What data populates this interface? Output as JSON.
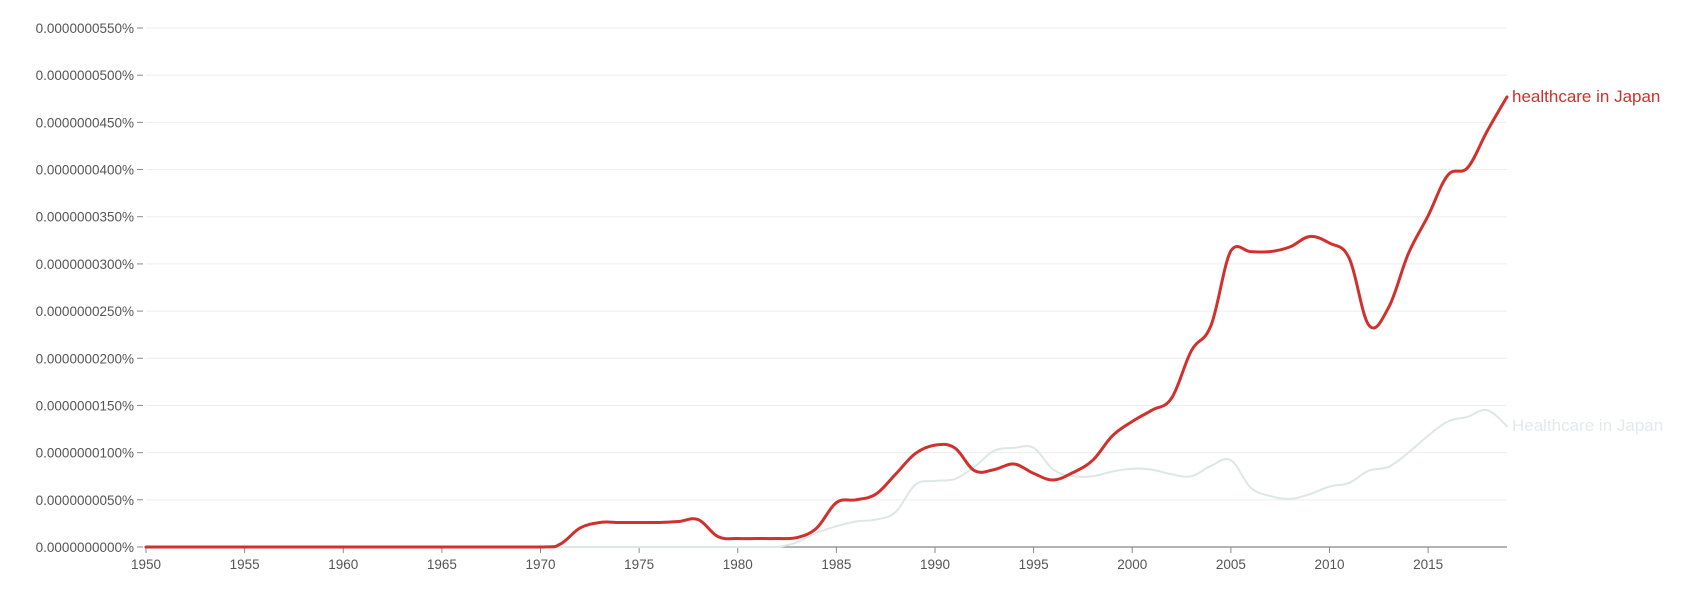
{
  "chart_data": {
    "type": "line",
    "title": "",
    "xlabel": "",
    "ylabel": "",
    "xlim": [
      1950,
      2019
    ],
    "ylim": [
      0,
      5.5e-08
    ],
    "grid": true,
    "x_ticks": [
      1950,
      1955,
      1960,
      1965,
      1970,
      1975,
      1980,
      1985,
      1990,
      1995,
      2000,
      2005,
      2010,
      2015
    ],
    "y_ticks": [
      0,
      5e-09,
      1e-08,
      1.5e-08,
      2e-08,
      2.5e-08,
      3e-08,
      3.5e-08,
      4e-08,
      4.5e-08,
      5e-08,
      5.5e-08
    ],
    "y_tick_labels": [
      "0.0000000000%",
      "0.0000000050%",
      "0.0000000100%",
      "0.0000000150%",
      "0.0000000200%",
      "0.0000000250%",
      "0.0000000300%",
      "0.0000000350%",
      "0.0000000400%",
      "0.0000000450%",
      "0.0000000500%",
      "0.0000000550%"
    ],
    "legend": "series labels at right end of lines",
    "series": [
      {
        "name": "healthcare in Japan",
        "color": "#d0312d",
        "x": [
          1950,
          1955,
          1960,
          1965,
          1970,
          1971,
          1972,
          1973,
          1974,
          1975,
          1976,
          1977,
          1978,
          1979,
          1980,
          1981,
          1982,
          1983,
          1984,
          1985,
          1986,
          1987,
          1988,
          1989,
          1990,
          1991,
          1992,
          1993,
          1994,
          1995,
          1996,
          1997,
          1998,
          1999,
          2000,
          2001,
          2002,
          2003,
          2004,
          2005,
          2006,
          2007,
          2008,
          2009,
          2010,
          2011,
          2012,
          2013,
          2014,
          2015,
          2016,
          2017,
          2018,
          2019
        ],
        "values": [
          0,
          0,
          0,
          0,
          0,
          3e-10,
          2e-09,
          2.6e-09,
          2.6e-09,
          2.6e-09,
          2.6e-09,
          2.7e-09,
          2.9e-09,
          1.1e-09,
          9e-10,
          9e-10,
          9e-10,
          1e-09,
          2e-09,
          4.7e-09,
          5e-09,
          5.6e-09,
          7.7e-09,
          9.9e-09,
          1.08e-08,
          1.05e-08,
          8.1e-09,
          8.2e-09,
          8.8e-09,
          7.8e-09,
          7.1e-09,
          7.9e-09,
          9.2e-09,
          1.18e-08,
          1.33e-08,
          1.45e-08,
          1.58e-08,
          2.08e-08,
          2.35e-08,
          3.14e-08,
          3.13e-08,
          3.13e-08,
          3.18e-08,
          3.29e-08,
          3.22e-08,
          3.06e-08,
          2.35e-08,
          2.54e-08,
          3.11e-08,
          3.51e-08,
          3.94e-08,
          4.02e-08,
          4.41e-08,
          4.77e-08
        ]
      },
      {
        "name": "Healthcare in Japan",
        "color": "#dde7e6",
        "x": [
          1950,
          1955,
          1960,
          1965,
          1970,
          1975,
          1980,
          1981,
          1982,
          1983,
          1984,
          1985,
          1986,
          1987,
          1988,
          1989,
          1990,
          1991,
          1992,
          1993,
          1994,
          1995,
          1996,
          1997,
          1998,
          1999,
          2000,
          2001,
          2002,
          2003,
          2004,
          2005,
          2006,
          2007,
          2008,
          2009,
          2010,
          2011,
          2012,
          2013,
          2014,
          2015,
          2016,
          2017,
          2018,
          2019
        ],
        "values": [
          0,
          0,
          0,
          0,
          0,
          0,
          0,
          0,
          0,
          5e-10,
          1.5e-09,
          2.2e-09,
          2.7e-09,
          2.9e-09,
          3.7e-09,
          6.6e-09,
          7e-09,
          7.2e-09,
          8.5e-09,
          1.02e-08,
          1.05e-08,
          1.05e-08,
          8.2e-09,
          7.5e-09,
          7.5e-09,
          8e-09,
          8.3e-09,
          8.2e-09,
          7.7e-09,
          7.5e-09,
          8.6e-09,
          9.2e-09,
          6.3e-09,
          5.4e-09,
          5.1e-09,
          5.6e-09,
          6.4e-09,
          6.8e-09,
          8.1e-09,
          8.5e-09,
          1e-08,
          1.18e-08,
          1.33e-08,
          1.38e-08,
          1.45e-08,
          1.28e-08
        ]
      }
    ]
  }
}
